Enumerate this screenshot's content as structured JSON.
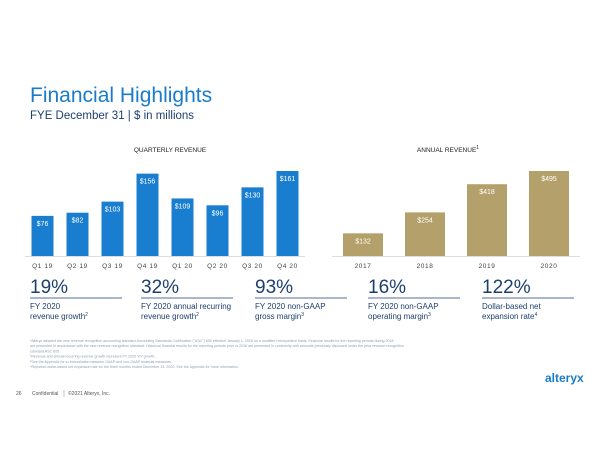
{
  "title": "Financial Highlights",
  "subtitle": "FYE December 31 | $ in millions",
  "chart_data": [
    {
      "type": "bar",
      "title": "QUARTERLY REVENUE",
      "color": "#1a7ed0",
      "categories": [
        "Q1 19",
        "Q2 19",
        "Q3 19",
        "Q4 19",
        "Q1 20",
        "Q2 20",
        "Q3 20",
        "Q4 20"
      ],
      "values": [
        76,
        82,
        103,
        156,
        109,
        96,
        130,
        161
      ],
      "value_labels": [
        "$76",
        "$82",
        "$103",
        "$156",
        "$109",
        "$96",
        "$130",
        "$161"
      ]
    },
    {
      "type": "bar",
      "title": "ANNUAL REVENUE",
      "title_footnote": "1",
      "color": "#b4a06a",
      "categories": [
        "2017",
        "2018",
        "2019",
        "2020"
      ],
      "values": [
        132,
        254,
        418,
        495
      ],
      "value_labels": [
        "$132",
        "$254",
        "$418",
        "$495"
      ]
    }
  ],
  "kpis": [
    {
      "value": "19%",
      "lines": [
        "FY 2020",
        "revenue growth"
      ],
      "footnote": "2"
    },
    {
      "value": "32%",
      "lines": [
        "FY 2020 annual recurring",
        "revenue growth"
      ],
      "footnote": "2"
    },
    {
      "value": "93%",
      "lines": [
        "FY 2020 non-GAAP",
        "gross margin"
      ],
      "footnote": "3"
    },
    {
      "value": "16%",
      "lines": [
        "FY 2020 non-GAAP",
        "operating margin"
      ],
      "footnote": "3"
    },
    {
      "value": "122%",
      "lines": [
        "Dollar-based net",
        "expansion rate"
      ],
      "footnote": "4"
    }
  ],
  "footnotes": [
    "¹Alteryx adopted the new revenue recognition accounting standard Accounting Standards Codification (\"ASC\") 606 effective January 1, 2018 on a modified retrospective basis. Financial results for the reporting periods during 2018",
    "are presented in accordance with the new revenue recognition standard. Historical financial results for the reporting periods prior to 2018 are presented in conformity with amounts previously disclosed under the prior revenue recognition",
    "standard ASC 605.",
    "²Revenue and annual recurring revenue growth represent FY 2020 Y/Y growth.",
    "³See the Appendix for a reconciliation between GAAP and non-GAAP financial measures.",
    "⁴Reported dollar-based net expansion rate for the three months ended December 31, 2020. See the Appendix for more information."
  ],
  "footer": {
    "page": "26",
    "confidential": "Confidential",
    "copyright": "©2021 Alteryx, Inc.",
    "logo": "alteryx"
  }
}
